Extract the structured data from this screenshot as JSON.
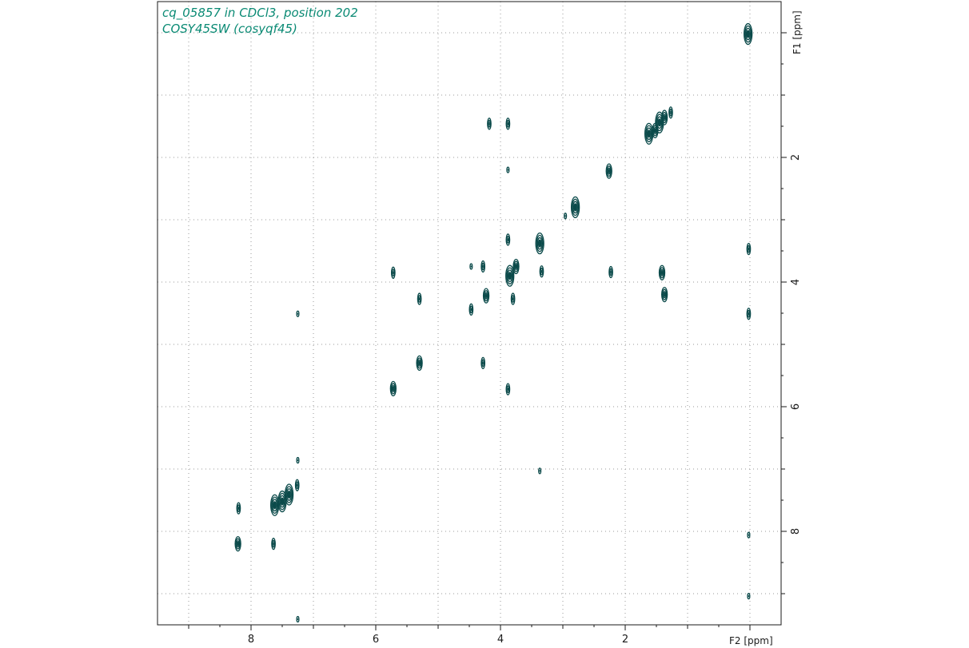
{
  "header": {
    "line1": "cq_05857 in CDCl3, position 202",
    "line2": "COSY45SW (cosyqf45)"
  },
  "colors": {
    "contour": "#0b4a4a",
    "title": "#0a8a74",
    "grid": "#9a9a9a",
    "frame": "#1a1a1a"
  },
  "chart_data": {
    "type": "scatter",
    "subtype": "2D NMR COSY contour plot",
    "xlabel": "F2 [ppm]",
    "ylabel": "F1 [ppm]",
    "xlim": [
      9.5,
      -0.5
    ],
    "ylim": [
      -0.5,
      9.5
    ],
    "x_reversed": true,
    "y_reversed": true,
    "x_ticks": [
      8,
      6,
      4,
      2
    ],
    "y_ticks": [
      2,
      4,
      6,
      8
    ],
    "grid": true,
    "grid_style": "dotted",
    "peaks": [
      {
        "x": 0.03,
        "y": 0.02,
        "size": "large"
      },
      {
        "x": 0.02,
        "y": 3.47,
        "size": "small"
      },
      {
        "x": 0.02,
        "y": 4.51,
        "size": "small"
      },
      {
        "x": 0.02,
        "y": 8.06,
        "size": "tiny"
      },
      {
        "x": 0.02,
        "y": 9.04,
        "size": "tiny"
      },
      {
        "x": 1.27,
        "y": 1.28,
        "size": "small"
      },
      {
        "x": 1.37,
        "y": 1.36,
        "size": "medium"
      },
      {
        "x": 1.45,
        "y": 1.44,
        "size": "large"
      },
      {
        "x": 1.52,
        "y": 1.57,
        "size": "medium"
      },
      {
        "x": 1.62,
        "y": 1.62,
        "size": "large"
      },
      {
        "x": 1.41,
        "y": 3.85,
        "size": "medium"
      },
      {
        "x": 1.37,
        "y": 4.2,
        "size": "medium"
      },
      {
        "x": 2.26,
        "y": 2.22,
        "size": "medium"
      },
      {
        "x": 2.23,
        "y": 3.84,
        "size": "small"
      },
      {
        "x": 2.8,
        "y": 2.8,
        "size": "large"
      },
      {
        "x": 2.96,
        "y": 2.94,
        "size": "tiny"
      },
      {
        "x": 3.37,
        "y": 3.38,
        "size": "large"
      },
      {
        "x": 3.34,
        "y": 3.83,
        "size": "small"
      },
      {
        "x": 3.37,
        "y": 7.03,
        "size": "tiny"
      },
      {
        "x": 3.88,
        "y": 1.46,
        "size": "small"
      },
      {
        "x": 3.88,
        "y": 2.2,
        "size": "tiny"
      },
      {
        "x": 3.88,
        "y": 3.32,
        "size": "small"
      },
      {
        "x": 3.85,
        "y": 3.9,
        "size": "large"
      },
      {
        "x": 3.75,
        "y": 3.75,
        "size": "medium"
      },
      {
        "x": 3.88,
        "y": 5.72,
        "size": "small"
      },
      {
        "x": 3.8,
        "y": 4.27,
        "size": "small"
      },
      {
        "x": 4.18,
        "y": 1.46,
        "size": "small"
      },
      {
        "x": 4.23,
        "y": 4.22,
        "size": "medium"
      },
      {
        "x": 4.28,
        "y": 3.75,
        "size": "small"
      },
      {
        "x": 4.28,
        "y": 5.3,
        "size": "small"
      },
      {
        "x": 4.47,
        "y": 4.44,
        "size": "small"
      },
      {
        "x": 4.47,
        "y": 3.75,
        "size": "tiny"
      },
      {
        "x": 5.3,
        "y": 4.27,
        "size": "small"
      },
      {
        "x": 5.3,
        "y": 5.3,
        "size": "medium"
      },
      {
        "x": 5.72,
        "y": 3.85,
        "size": "small"
      },
      {
        "x": 5.72,
        "y": 5.71,
        "size": "medium"
      },
      {
        "x": 7.25,
        "y": 4.51,
        "size": "tiny"
      },
      {
        "x": 7.25,
        "y": 6.86,
        "size": "tiny"
      },
      {
        "x": 7.26,
        "y": 7.26,
        "size": "small"
      },
      {
        "x": 7.25,
        "y": 9.41,
        "size": "tiny"
      },
      {
        "x": 7.39,
        "y": 7.41,
        "size": "large"
      },
      {
        "x": 7.5,
        "y": 7.52,
        "size": "large"
      },
      {
        "x": 7.62,
        "y": 7.58,
        "size": "large"
      },
      {
        "x": 7.64,
        "y": 8.2,
        "size": "small"
      },
      {
        "x": 8.2,
        "y": 7.63,
        "size": "small"
      },
      {
        "x": 8.21,
        "y": 8.2,
        "size": "medium"
      }
    ]
  }
}
